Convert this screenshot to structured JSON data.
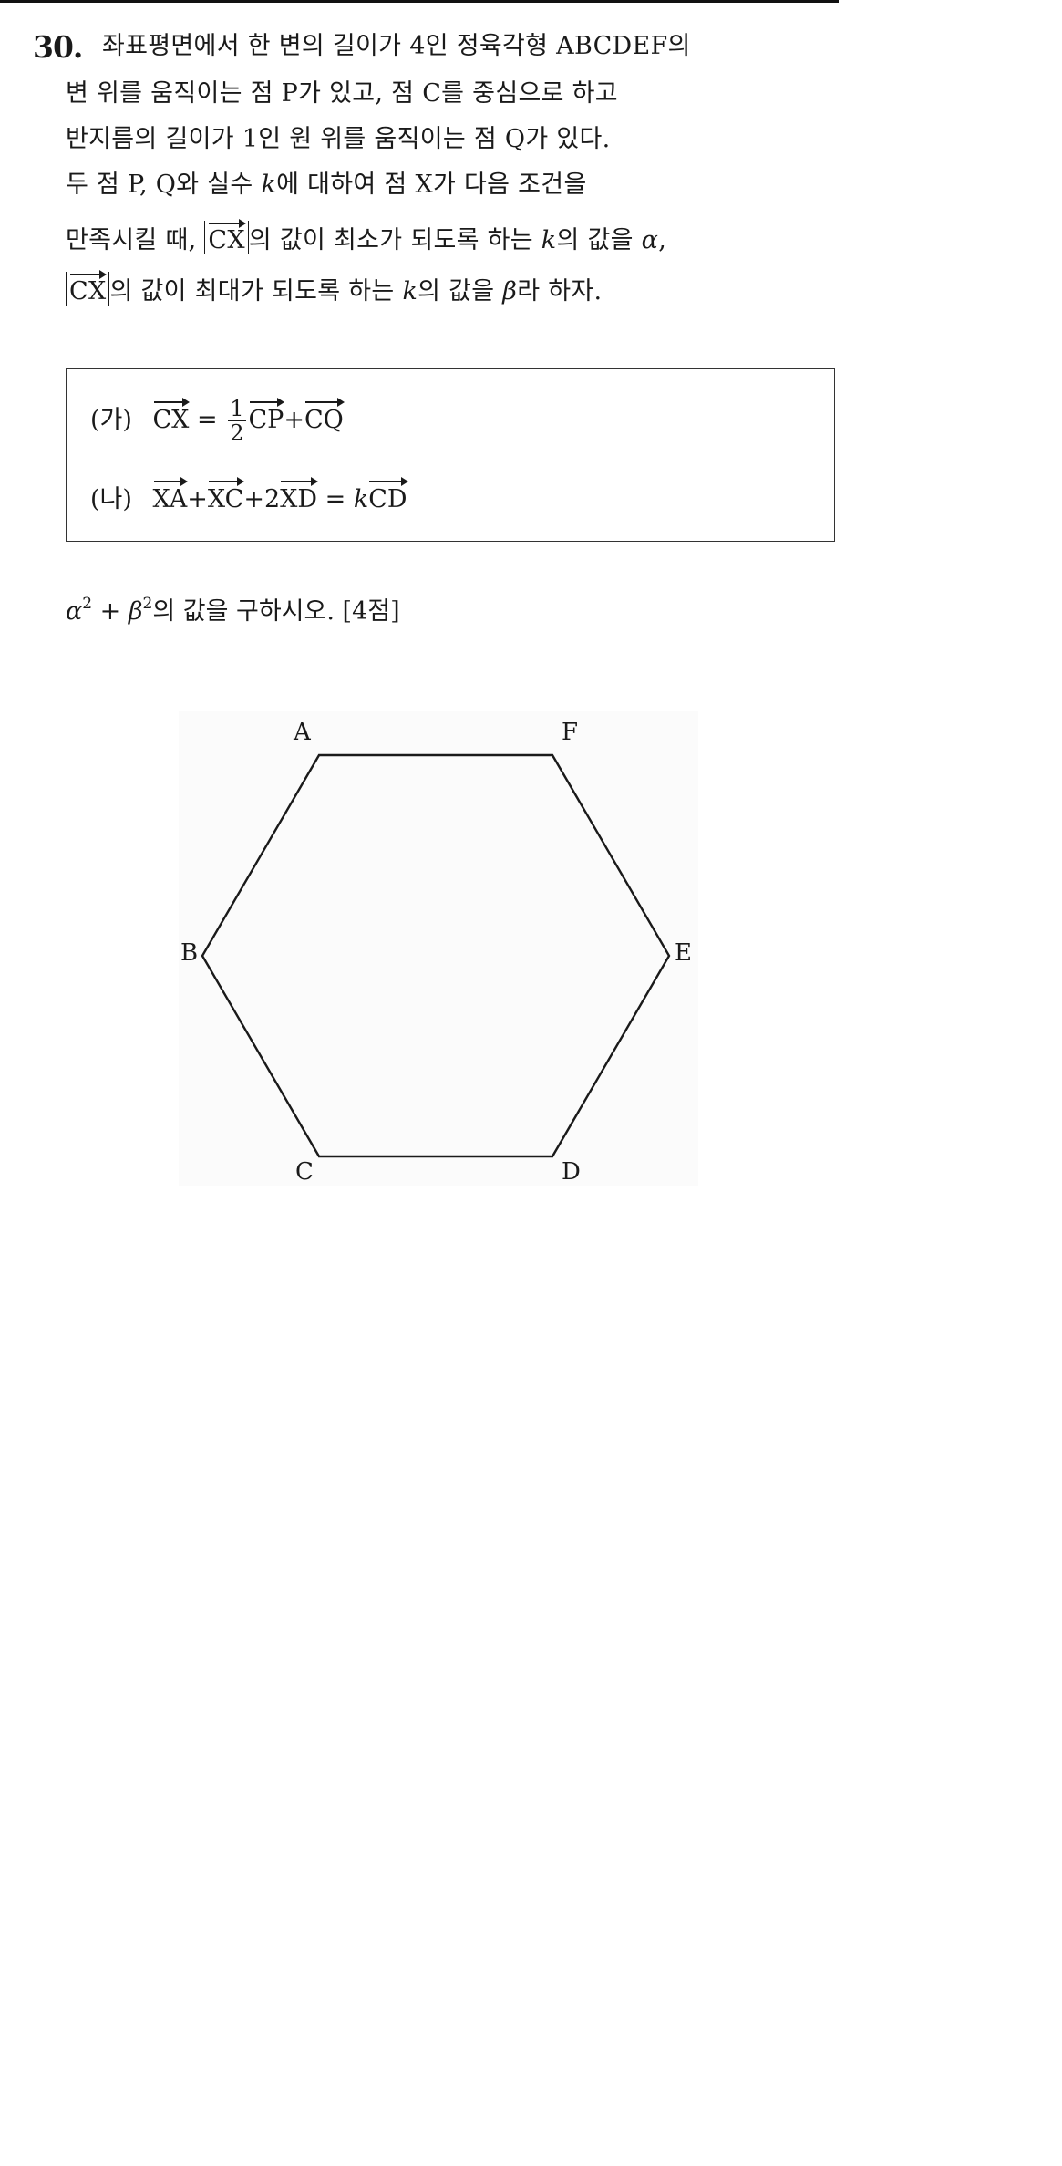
{
  "problem": {
    "number": "30.",
    "stem_lines": [
      "좌표평면에서 한 변의 길이가 4인 정육각형 ABCDEF의",
      "변 위를 움직이는 점 P가 있고, 점 C를 중심으로 하고",
      "반지름의 길이가 1인 원 위를 움직이는 점 Q가 있다.",
      "두 점 P, Q와 실수 ",
      "에 대하여 점 X가 다음 조건을",
      "만족시킬 때, ",
      "의 값이 최소가 되도록 하는 ",
      "의 값을 ",
      ",",
      "의 값이 최대가 되도록 하는 ",
      "의 값을 ",
      "라 하자."
    ],
    "symbols": {
      "k": "k",
      "alpha": "α",
      "beta": "β",
      "CX": "CX"
    }
  },
  "conditions": {
    "ga": {
      "tag": "(가)",
      "lhs": "CX",
      "eq": "=",
      "frac_num": "1",
      "frac_den": "2",
      "t1": "CP",
      "plus": "+",
      "t2": "CQ"
    },
    "na": {
      "tag": "(나)",
      "t1": "XA",
      "plus1": "+",
      "t2": "XC",
      "plus2": "+",
      "coef": "2",
      "t3": "XD",
      "eq": "=",
      "k": "k",
      "rhs": "CD"
    }
  },
  "question": {
    "alpha": "α",
    "beta": "β",
    "exp": "2",
    "plus": "+",
    "text": "의 값을 구하시오.",
    "points": "[4점]"
  },
  "figure": {
    "vertices": [
      "A",
      "B",
      "C",
      "D",
      "E",
      "F"
    ],
    "stroke_color": "#1a1a1a",
    "background": "#fbfbfb"
  }
}
